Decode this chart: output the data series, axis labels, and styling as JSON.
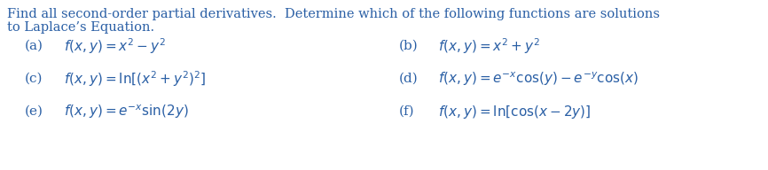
{
  "title_line1": "Find all second-order partial derivatives.  Determine which of the following functions are solutions",
  "title_line2": "to Laplace’s Equation.",
  "items": [
    {
      "label": "(a)",
      "formula": "$f(x, y) = x^2 - y^2$",
      "col": 0
    },
    {
      "label": "(b)",
      "formula": "$f(x, y) = x^2 + y^2$",
      "col": 1
    },
    {
      "label": "(c)",
      "formula": "$f(x, y) = \\ln[(x^2 + y^2)^2]$",
      "col": 0
    },
    {
      "label": "(d)",
      "formula": "$f(x, y) = e^{-x}\\cos(y) - e^{-y}\\cos(x)$",
      "col": 1
    },
    {
      "label": "(e)",
      "formula": "$f(x, y) = e^{-x}\\sin(2y)$",
      "col": 0
    },
    {
      "label": "(f)",
      "formula": "$f(x, y) = \\ln[\\cos(x - 2y)]$",
      "col": 1
    }
  ],
  "text_color": "#2a5fa5",
  "background_color": "#ffffff",
  "font_size_title": 10.5,
  "font_size_items": 11.0
}
